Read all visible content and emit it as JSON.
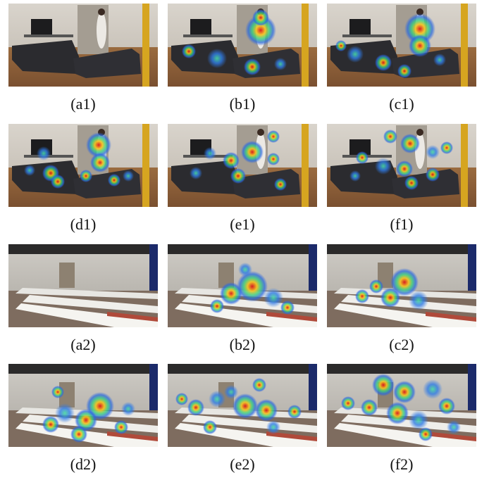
{
  "figure": {
    "captions": [
      "(a1)",
      "(b1)",
      "(c1)",
      "(d1)",
      "(e1)",
      "(f1)",
      "(a2)",
      "(b2)",
      "(c2)",
      "(d2)",
      "(e2)",
      "(f2)"
    ]
  }
}
